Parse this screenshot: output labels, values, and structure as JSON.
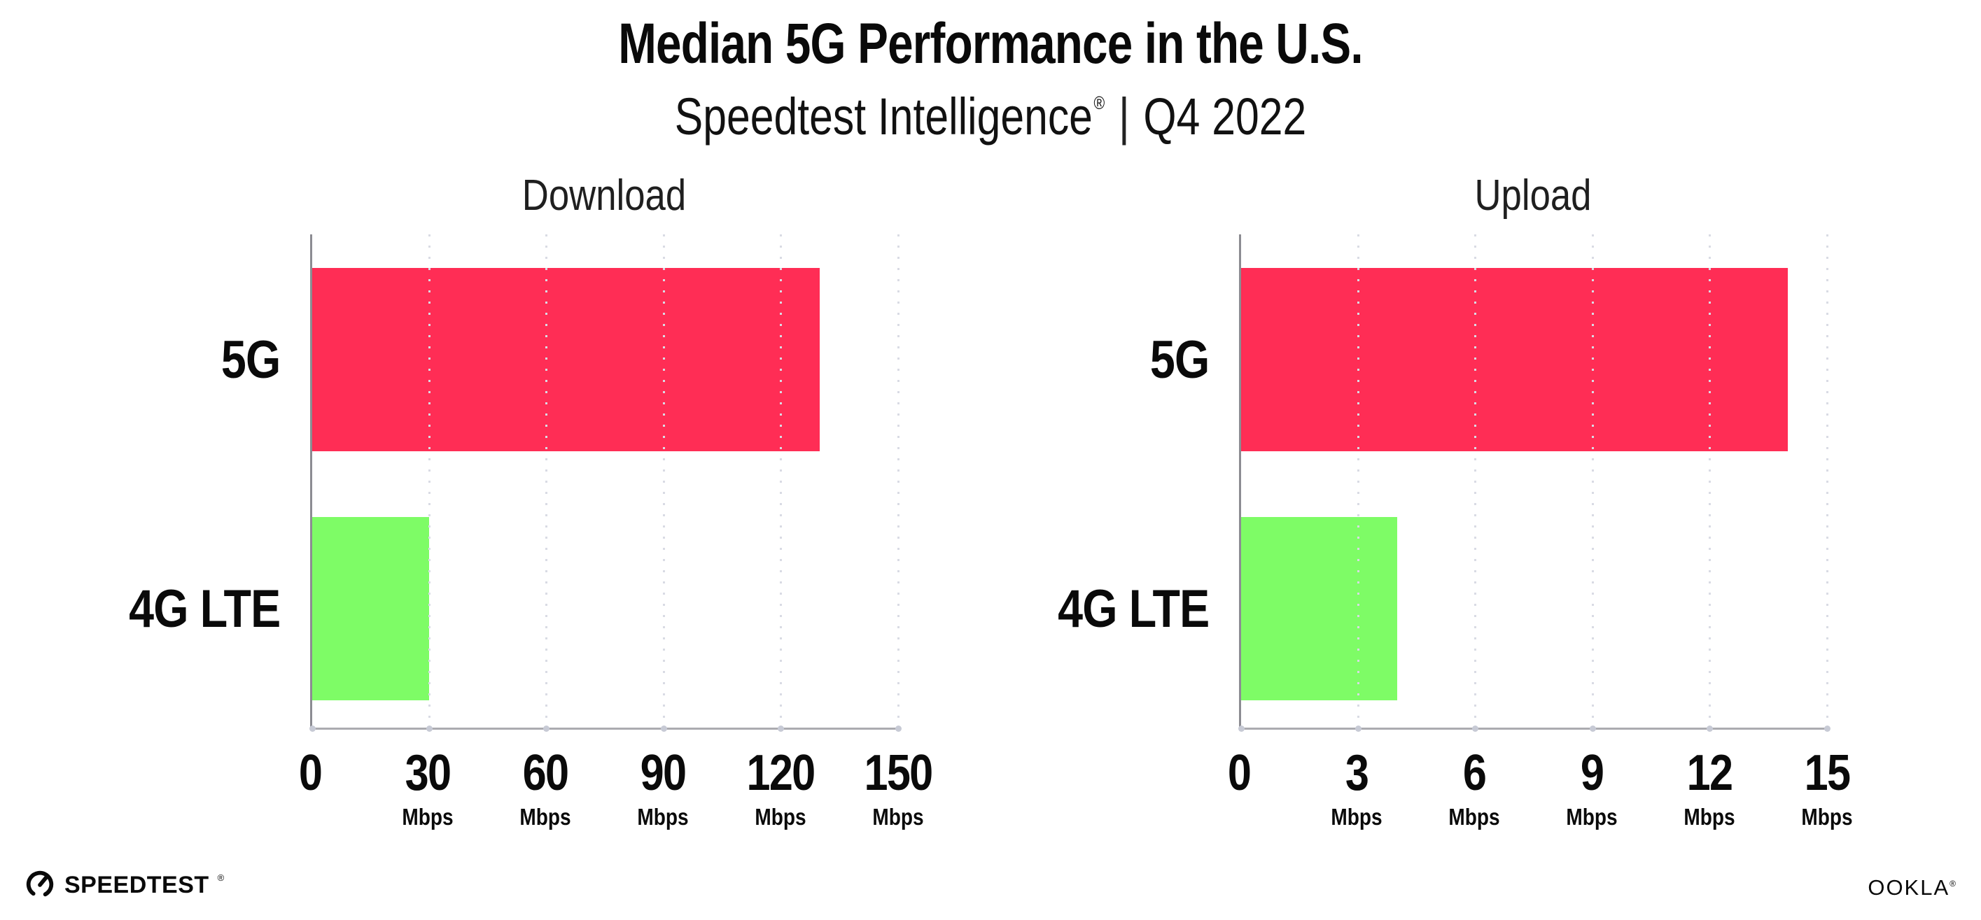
{
  "header": {
    "title": "Median 5G Performance in the U.S.",
    "subtitle": {
      "brand": "Speedtest Intelligence",
      "reg_mark": "®",
      "separator": "|",
      "period": "Q4 2022"
    }
  },
  "chart_data": [
    {
      "type": "bar",
      "orientation": "horizontal",
      "title": "Download",
      "categories": [
        "5G",
        "4G LTE"
      ],
      "values": [
        130,
        30
      ],
      "unit": "Mbps",
      "xlim": [
        0,
        150
      ],
      "xticks": [
        0,
        30,
        60,
        90,
        120,
        150
      ],
      "grid": "vertical-dotted",
      "legend": "none",
      "bar_colors": [
        "#ff2d55",
        "#7efc66"
      ]
    },
    {
      "type": "bar",
      "orientation": "horizontal",
      "title": "Upload",
      "categories": [
        "5G",
        "4G LTE"
      ],
      "values": [
        14,
        4
      ],
      "unit": "Mbps",
      "xlim": [
        0,
        15
      ],
      "xticks": [
        0,
        3,
        6,
        9,
        12,
        15
      ],
      "grid": "vertical-dotted",
      "legend": "none",
      "bar_colors": [
        "#ff2d55",
        "#7efc66"
      ]
    }
  ],
  "footer": {
    "speedtest_logo_text": "SPEEDTEST",
    "speedtest_trademark": "®",
    "ookla_logo_text": "OOKLA",
    "ookla_trademark": "®"
  },
  "colors": {
    "bar_5g": "#ff2d55",
    "bar_4g_lte": "#7efc66",
    "y_axis_line": "#8c8c92",
    "x_axis_line": "#ababb0",
    "gridline": "#d9dbe4",
    "tick_dot": "#c7cad5",
    "text": "#0a0a0a",
    "background": "#ffffff"
  }
}
